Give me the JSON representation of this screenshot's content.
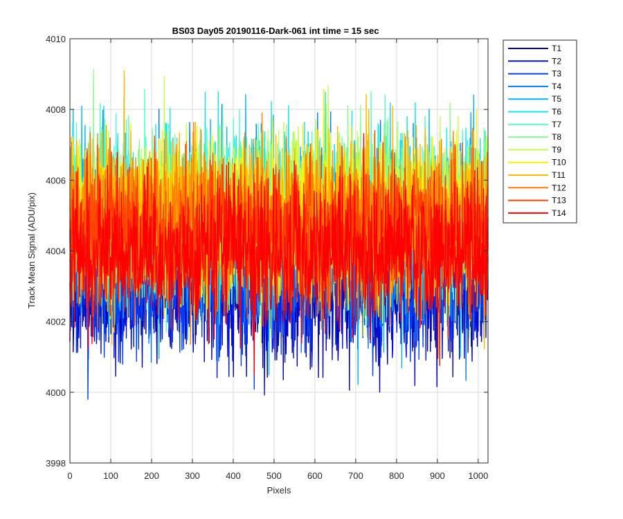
{
  "chart_data": {
    "type": "line",
    "title": "BS03 Day05 20190116-Dark-061 int time = 15 sec",
    "xlabel": "Pixels",
    "ylabel": "Track Mean Signal (ADU/pix)",
    "xlim": [
      0,
      1024
    ],
    "ylim": [
      3998,
      4010
    ],
    "xticks": [
      0,
      100,
      200,
      300,
      400,
      500,
      600,
      700,
      800,
      900,
      1000
    ],
    "yticks": [
      3998,
      4000,
      4002,
      4004,
      4006,
      4008,
      4010
    ],
    "grid": true,
    "legend_position": "outside-top-right",
    "points_per_series": 1024,
    "series": [
      {
        "name": "T1",
        "color": "#0000b2",
        "mean": 4003.0,
        "noise": 1.0
      },
      {
        "name": "T2",
        "color": "#0010d8",
        "mean": 4003.1,
        "noise": 1.0
      },
      {
        "name": "T3",
        "color": "#0040f5",
        "mean": 4003.4,
        "noise": 1.05
      },
      {
        "name": "T4",
        "color": "#007cff",
        "mean": 4004.2,
        "noise": 1.15
      },
      {
        "name": "T5",
        "color": "#00b4ff",
        "mean": 4004.8,
        "noise": 1.2
      },
      {
        "name": "T6",
        "color": "#13e3f2",
        "mean": 4005.0,
        "noise": 1.2
      },
      {
        "name": "T7",
        "color": "#4fffc4",
        "mean": 4005.0,
        "noise": 1.15
      },
      {
        "name": "T8",
        "color": "#89ff8a",
        "mean": 4005.1,
        "noise": 1.15
      },
      {
        "name": "T9",
        "color": "#c4ff4f",
        "mean": 4005.0,
        "noise": 1.1
      },
      {
        "name": "T10",
        "color": "#ffef00",
        "mean": 4005.0,
        "noise": 1.1
      },
      {
        "name": "T11",
        "color": "#ffb800",
        "mean": 4005.0,
        "noise": 1.1
      },
      {
        "name": "T12",
        "color": "#ff7c00",
        "mean": 4004.7,
        "noise": 1.05
      },
      {
        "name": "T13",
        "color": "#ff4000",
        "mean": 4004.5,
        "noise": 1.0
      },
      {
        "name": "T14",
        "color": "#ff0000",
        "mean": 4004.0,
        "noise": 1.0
      }
    ]
  }
}
